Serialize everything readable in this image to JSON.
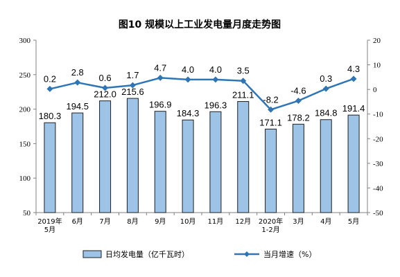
{
  "chart_data": {
    "type": "bar",
    "title": "图10  规模以上工业发电量月度走势图",
    "categories": [
      [
        "2019年",
        "5月"
      ],
      [
        "6月"
      ],
      [
        "7月"
      ],
      [
        "8月"
      ],
      [
        "9月"
      ],
      [
        "10月"
      ],
      [
        "11月"
      ],
      [
        "12月"
      ],
      [
        "2020年",
        "1-2月"
      ],
      [
        "3月"
      ],
      [
        "4月"
      ],
      [
        "5月"
      ]
    ],
    "series": [
      {
        "name": "日均发电量（亿千瓦时）",
        "type": "bar",
        "axis": "left",
        "values": [
          180.3,
          194.5,
          212.0,
          215.6,
          196.9,
          184.3,
          196.3,
          211.1,
          171.1,
          178.2,
          184.8,
          191.4
        ],
        "labels": [
          "180.3",
          "194.5",
          "212.0",
          "215.6",
          "196.9",
          "184.3",
          "196.3",
          "211.1",
          "171.1",
          "178.2",
          "184.8",
          "191.4"
        ],
        "color": "#9DC3E6",
        "stroke": "#1F1F1F"
      },
      {
        "name": "当月增速（%）",
        "type": "line",
        "axis": "right",
        "values": [
          0.2,
          2.8,
          0.6,
          1.7,
          4.7,
          4.0,
          4.0,
          3.5,
          -8.2,
          -4.6,
          0.3,
          4.3
        ],
        "labels": [
          "0.2",
          "2.8",
          "0.6",
          "1.7",
          "4.7",
          "4.0",
          "4.0",
          "3.5",
          "-8.2",
          "-4.6",
          "0.3",
          "4.3"
        ],
        "color": "#2E75B6"
      }
    ],
    "y_left": {
      "min": 50,
      "max": 300,
      "ticks": [
        50,
        100,
        150,
        200,
        250,
        300
      ],
      "tick_labels": [
        "50",
        "100",
        "150",
        "200",
        "250",
        "300"
      ]
    },
    "y_right": {
      "min": -50,
      "max": 20,
      "ticks": [
        -50,
        -40,
        -30,
        -20,
        -10,
        0,
        10,
        20
      ],
      "tick_labels": [
        "-50",
        "-40",
        "-30",
        "-20",
        "-10",
        "0",
        "10",
        "20"
      ]
    },
    "grid": false,
    "legend_position": "bottom"
  }
}
